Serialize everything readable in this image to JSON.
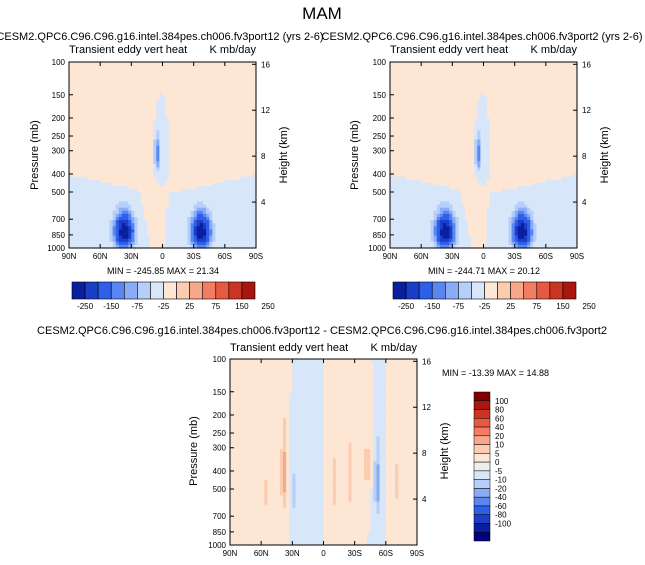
{
  "figure_title": "MAM",
  "chart_data": [
    {
      "type": "heatmap",
      "title": "CESM2.QPC6.C96.C96.g16.intel.384pes.ch006.fv3port12 (yrs 2-6)",
      "left_label": "Transient eddy vert heat",
      "right_label": "K mb/day",
      "ylabel": "Pressure (mb)",
      "y2label": "Height (km)",
      "x_ticks": [
        "90N",
        "60N",
        "30N",
        "0",
        "30S",
        "60S",
        "90S"
      ],
      "y_ticks": [
        "100",
        "150",
        "200",
        "250",
        "300",
        "400",
        "500",
        "700",
        "850",
        "1000"
      ],
      "y2_ticks": [
        "16",
        "12",
        "8",
        "4"
      ],
      "min": -245.85,
      "max": 21.34,
      "stats_text": "MIN = -245.85   MAX = 21.34",
      "colorbar_labels": [
        "-250",
        "-150",
        "-75",
        "-25",
        "25",
        "75",
        "150",
        "250"
      ],
      "colorbar_levels": [
        -250,
        -200,
        -150,
        -100,
        -75,
        -50,
        -25,
        0,
        25,
        50,
        75,
        100,
        150,
        200,
        250
      ],
      "features": [
        {
          "lat": 37,
          "pres": 820,
          "value": -245,
          "sx": 9,
          "sp": 170
        },
        {
          "lat": -37,
          "pres": 820,
          "value": -240,
          "sx": 9,
          "sp": 170
        },
        {
          "lat": 5,
          "pres": 310,
          "value": -95,
          "sx": 3,
          "sp": 70
        }
      ]
    },
    {
      "type": "heatmap",
      "title": "CESM2.QPC6.C96.C96.g16.intel.384pes.ch006.fv3port2 (yrs 2-6)",
      "left_label": "Transient eddy vert heat",
      "right_label": "K mb/day",
      "ylabel": "Pressure (mb)",
      "y2label": "Height (km)",
      "x_ticks": [
        "90N",
        "60N",
        "30N",
        "0",
        "30S",
        "60S",
        "90S"
      ],
      "y_ticks": [
        "100",
        "150",
        "200",
        "250",
        "300",
        "400",
        "500",
        "700",
        "850",
        "1000"
      ],
      "y2_ticks": [
        "16",
        "12",
        "8",
        "4"
      ],
      "min": -244.71,
      "max": 20.12,
      "stats_text": "MIN = -244.71   MAX = 20.12",
      "colorbar_labels": [
        "-250",
        "-150",
        "-75",
        "-25",
        "25",
        "75",
        "150",
        "250"
      ],
      "colorbar_levels": [
        -250,
        -200,
        -150,
        -100,
        -75,
        -50,
        -25,
        0,
        25,
        50,
        75,
        100,
        150,
        200,
        250
      ],
      "features": [
        {
          "lat": 37,
          "pres": 820,
          "value": -244,
          "sx": 9,
          "sp": 170
        },
        {
          "lat": -37,
          "pres": 820,
          "value": -240,
          "sx": 9,
          "sp": 170
        },
        {
          "lat": 5,
          "pres": 310,
          "value": -95,
          "sx": 3,
          "sp": 70
        }
      ]
    },
    {
      "type": "heatmap",
      "title": "CESM2.QPC6.C96.C96.g16.intel.384pes.ch006.fv3port12 - CESM2.QPC6.C96.C96.g16.intel.384pes.ch006.fv3port2",
      "left_label": "Transient eddy vert heat",
      "right_label": "K mb/day",
      "ylabel": "Pressure (mb)",
      "y2label": "Height (km)",
      "x_ticks": [
        "90N",
        "60N",
        "30N",
        "0",
        "30S",
        "60S",
        "90S"
      ],
      "y_ticks": [
        "100",
        "150",
        "200",
        "250",
        "300",
        "400",
        "500",
        "700",
        "850",
        "1000"
      ],
      "y2_ticks": [
        "16",
        "12",
        "8",
        "4"
      ],
      "min": -13.39,
      "max": 14.88,
      "stats_text": "MIN = -13.39   MAX = 14.88",
      "colorbar_labels": [
        "100",
        "80",
        "60",
        "40",
        "20",
        "10",
        "5",
        "0",
        "-5",
        "-10",
        "-20",
        "-40",
        "-60",
        "-80",
        "-100"
      ],
      "colorbar_levels": [
        -100,
        -80,
        -60,
        -40,
        -20,
        -10,
        -5,
        0,
        5,
        10,
        20,
        40,
        60,
        80,
        100
      ],
      "features": [
        {
          "lat": 38,
          "pres": 420,
          "value": 13,
          "sx": 3,
          "sp": 220
        },
        {
          "lat": 55,
          "pres": 520,
          "value": 6,
          "sx": 4,
          "sp": 200
        },
        {
          "lat": 28,
          "pres": 520,
          "value": -7,
          "sx": 3,
          "sp": 180
        },
        {
          "lat": 12,
          "pres": 450,
          "value": -5,
          "sx": 3,
          "sp": 250
        },
        {
          "lat": -10,
          "pres": 480,
          "value": 7,
          "sx": 3,
          "sp": 250
        },
        {
          "lat": -25,
          "pres": 430,
          "value": 8,
          "sx": 3,
          "sp": 220
        },
        {
          "lat": -42,
          "pres": 380,
          "value": 8,
          "sx": 3,
          "sp": 150
        },
        {
          "lat": -52,
          "pres": 470,
          "value": -13,
          "sx": 3,
          "sp": 220
        },
        {
          "lat": -70,
          "pres": 470,
          "value": 6,
          "sx": 4,
          "sp": 250
        }
      ]
    }
  ],
  "colors": {
    "neg": [
      "#000080",
      "#0a1fa0",
      "#1a3ec8",
      "#2e5fe8",
      "#5a86f2",
      "#8aacf7",
      "#b6cff9",
      "#d8e6fa"
    ],
    "pos": [
      "#fde6d4",
      "#fbccb0",
      "#f7a88a",
      "#f37d62",
      "#e85a40",
      "#cc3322",
      "#a8160e",
      "#800000"
    ]
  }
}
